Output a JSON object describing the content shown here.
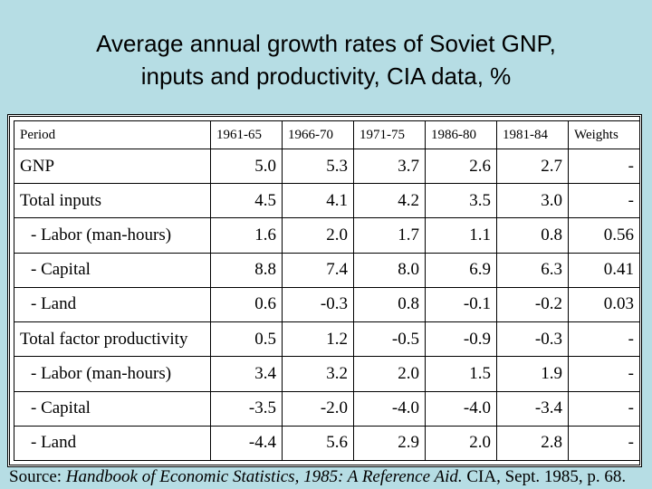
{
  "title": {
    "line1": "Average annual growth rates of Soviet GNP,",
    "line2": "inputs and productivity, CIA data, %"
  },
  "chart_data": {
    "type": "table",
    "columns": [
      "Period",
      "1961-65",
      "1966-70",
      "1971-75",
      "1986-80",
      "1981-84",
      "Weights"
    ],
    "rows": [
      {
        "label": "GNP",
        "sub": false,
        "values": [
          "5.0",
          "5.3",
          "3.7",
          "2.6",
          "2.7",
          "-"
        ]
      },
      {
        "label": "Total inputs",
        "sub": false,
        "values": [
          "4.5",
          "4.1",
          "4.2",
          "3.5",
          "3.0",
          "-"
        ]
      },
      {
        "label": "- Labor (man-hours)",
        "sub": true,
        "values": [
          "1.6",
          "2.0",
          "1.7",
          "1.1",
          "0.8",
          "0.56"
        ]
      },
      {
        "label": "- Capital",
        "sub": true,
        "values": [
          "8.8",
          "7.4",
          "8.0",
          "6.9",
          "6.3",
          "0.41"
        ]
      },
      {
        "label": "- Land",
        "sub": true,
        "values": [
          "0.6",
          "-0.3",
          "0.8",
          "-0.1",
          "-0.2",
          "0.03"
        ]
      },
      {
        "label": "Total factor productivity",
        "sub": false,
        "values": [
          "0.5",
          "1.2",
          "-0.5",
          "-0.9",
          "-0.3",
          "-"
        ]
      },
      {
        "label": "- Labor (man-hours)",
        "sub": true,
        "values": [
          "3.4",
          "3.2",
          "2.0",
          "1.5",
          "1.9",
          "-"
        ]
      },
      {
        "label": "- Capital",
        "sub": true,
        "values": [
          "-3.5",
          "-2.0",
          "-4.0",
          "-4.0",
          "-3.4",
          "-"
        ]
      },
      {
        "label": "- Land",
        "sub": true,
        "values": [
          "-4.4",
          "5.6",
          "2.9",
          "2.0",
          "2.8",
          "-"
        ]
      }
    ]
  },
  "source": {
    "prefix": "Source: ",
    "italic": "Handbook of Economic Statistics, 1985: A Reference Aid.",
    "suffix": "  CIA, Sept. 1985, p. 68."
  }
}
